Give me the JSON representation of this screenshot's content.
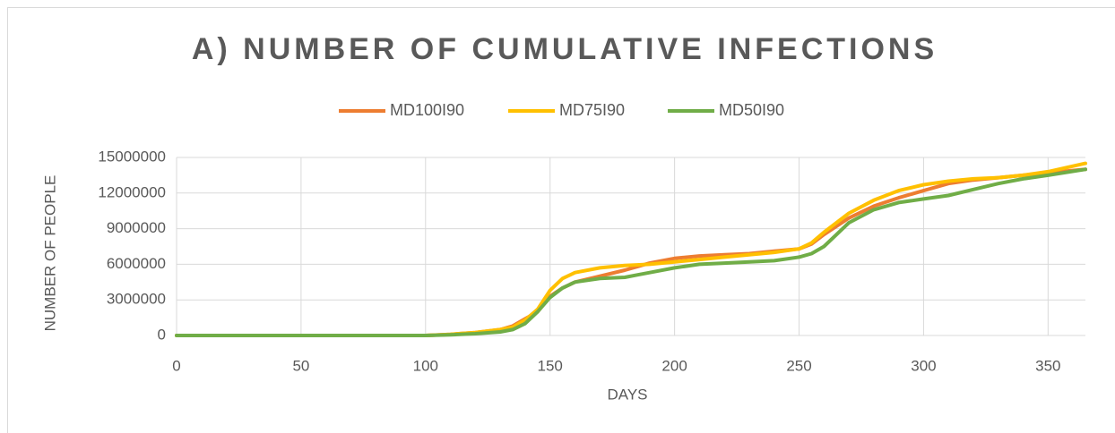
{
  "chart_data": {
    "type": "line",
    "title": "A) NUMBER OF CUMULATIVE INFECTIONS",
    "x_label": "DAYS",
    "y_label": "NUMBER OF PEOPLE",
    "x": [
      0,
      50,
      100,
      110,
      120,
      130,
      135,
      140,
      145,
      150,
      155,
      160,
      170,
      180,
      185,
      190,
      200,
      210,
      220,
      230,
      240,
      250,
      255,
      260,
      270,
      280,
      290,
      300,
      310,
      320,
      330,
      340,
      350,
      365
    ],
    "series": [
      {
        "name": "MD100I90",
        "color": "#ed7d31",
        "values": [
          0,
          0,
          0,
          100000,
          250000,
          500000,
          800000,
          1400000,
          2000000,
          3300000,
          4000000,
          4500000,
          5000000,
          5500000,
          5800000,
          6100000,
          6500000,
          6700000,
          6800000,
          6900000,
          7100000,
          7300000,
          7700000,
          8500000,
          9900000,
          10900000,
          11600000,
          12200000,
          12800000,
          13100000,
          13300000,
          13500000,
          13700000,
          14000000
        ]
      },
      {
        "name": "MD75I90",
        "color": "#ffc000",
        "values": [
          0,
          0,
          0,
          100000,
          250000,
          500000,
          700000,
          1300000,
          2200000,
          3800000,
          4800000,
          5300000,
          5700000,
          5900000,
          5950000,
          6000000,
          6200000,
          6400000,
          6600000,
          6800000,
          7000000,
          7300000,
          7800000,
          8700000,
          10300000,
          11400000,
          12200000,
          12700000,
          13000000,
          13200000,
          13300000,
          13500000,
          13800000,
          14500000
        ]
      },
      {
        "name": "MD50I90",
        "color": "#70ad47",
        "values": [
          0,
          0,
          0,
          50000,
          150000,
          300000,
          500000,
          1000000,
          2000000,
          3200000,
          4000000,
          4500000,
          4800000,
          4900000,
          5100000,
          5300000,
          5700000,
          6000000,
          6100000,
          6200000,
          6300000,
          6600000,
          6900000,
          7500000,
          9500000,
          10600000,
          11200000,
          11500000,
          11800000,
          12300000,
          12800000,
          13200000,
          13500000,
          14000000
        ]
      }
    ],
    "xlim": [
      0,
      365
    ],
    "xticks": [
      0,
      50,
      100,
      150,
      200,
      250,
      300,
      350
    ],
    "ylim": [
      0,
      15000000
    ],
    "yticks": [
      0,
      3000000,
      6000000,
      9000000,
      12000000,
      15000000
    ],
    "grid": true,
    "legend": "top"
  }
}
